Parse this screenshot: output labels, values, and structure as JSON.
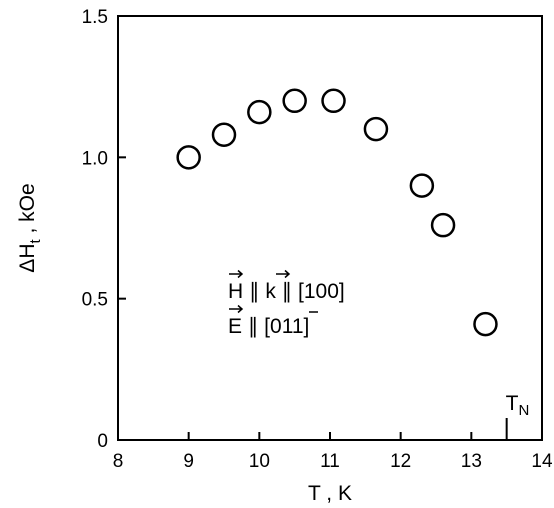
{
  "chart_data": {
    "type": "scatter",
    "title": "",
    "xlabel": "T , K",
    "ylabel": "ΔH",
    "ylabel_sub": "t",
    "ylabel_unit": " , kOe",
    "xlim": [
      8,
      14
    ],
    "ylim": [
      0,
      1.5
    ],
    "xticks": [
      {
        "value": 8,
        "label": "8"
      },
      {
        "value": 9,
        "label": "9"
      },
      {
        "value": 10,
        "label": "10"
      },
      {
        "value": 11,
        "label": "11"
      },
      {
        "value": 12,
        "label": "12"
      },
      {
        "value": 13,
        "label": "13"
      },
      {
        "value": 14,
        "label": "14"
      }
    ],
    "yticks": [
      {
        "value": 0,
        "label": "0"
      },
      {
        "value": 0.5,
        "label": "0.5"
      },
      {
        "value": 1.0,
        "label": "1.0"
      },
      {
        "value": 1.5,
        "label": "1.5"
      }
    ],
    "grid": false,
    "marker": "open-circle",
    "series": [
      {
        "x": [
          9.0,
          9.5,
          10.0,
          10.5,
          11.05,
          11.65,
          12.3,
          12.6,
          13.2
        ],
        "y": [
          1.0,
          1.08,
          1.16,
          1.2,
          1.2,
          1.1,
          0.9,
          0.76,
          0.41
        ]
      }
    ],
    "annotations": {
      "line1": {
        "h": "H",
        "sep1": " ∥ ",
        "k": "k",
        "sep2": " ∥ [100]"
      },
      "line2": {
        "e": "E",
        "pre": " ∥ [0",
        "bar_digit": "1",
        "post": "1]"
      },
      "tn_marker": {
        "x": 13.5,
        "label": "T",
        "sub": "N"
      }
    }
  }
}
